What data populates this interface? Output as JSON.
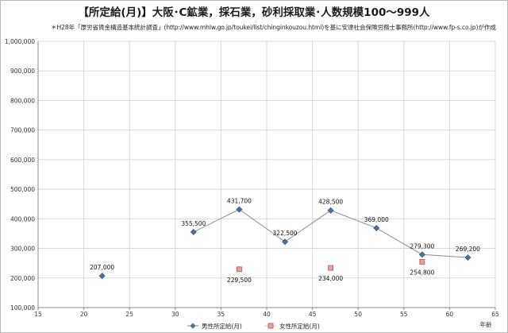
{
  "header": {
    "title": "【所定給(月)】大阪･C鉱業，採石業，砂利採取業･人数規模100～999人",
    "note": "＊H28年「厚労省賃金構造基本統計調査」(http://www.mhlw.go.jp/toukei/list/chinginkouzou.html)を基に安達社会保険労務士事務所(http://www.fp-s.co.jp)が作成"
  },
  "chart_data": {
    "type": "line",
    "xlabel": "年齢",
    "ylabel": "",
    "xlim": [
      15,
      65
    ],
    "ylim": [
      100000,
      1000000
    ],
    "x_ticks": [
      15,
      20,
      25,
      30,
      35,
      40,
      45,
      50,
      55,
      60,
      65
    ],
    "y_ticks": [
      100000,
      200000,
      300000,
      400000,
      500000,
      600000,
      700000,
      800000,
      900000,
      1000000
    ],
    "x_tick_labels": [
      "15",
      "20",
      "25",
      "30",
      "35",
      "40",
      "45",
      "50",
      "55",
      "60",
      "65"
    ],
    "y_tick_labels": [
      "100,000",
      "200,000",
      "300,000",
      "400,000",
      "500,000",
      "600,000",
      "700,000",
      "800,000",
      "900,000",
      "1,000,000"
    ],
    "grid": true,
    "legend_position": "bottom",
    "series": [
      {
        "name": "男性所定給(月)",
        "color": "#4a6fa5",
        "marker": "diamond",
        "points": [
          {
            "x": 22,
            "y": 207000,
            "label": "207,000"
          },
          {
            "x": 32,
            "y": 355500,
            "label": "355,500"
          },
          {
            "x": 37,
            "y": 431700,
            "label": "431,700"
          },
          {
            "x": 42,
            "y": 322500,
            "label": "322,500"
          },
          {
            "x": 47,
            "y": 428500,
            "label": "428,500"
          },
          {
            "x": 52,
            "y": 369000,
            "label": "369,000"
          },
          {
            "x": 57,
            "y": 279300,
            "label": "279,300"
          },
          {
            "x": 62,
            "y": 269200,
            "label": "269,200"
          }
        ],
        "connected_from_index": 1
      },
      {
        "name": "女性所定給(月)",
        "color": "#c0504d",
        "marker": "square",
        "points": [
          {
            "x": 37,
            "y": 229500,
            "label": "229,500"
          },
          {
            "x": 47,
            "y": 234000,
            "label": "234,000"
          },
          {
            "x": 57,
            "y": 254800,
            "label": "254,800"
          }
        ]
      }
    ]
  }
}
